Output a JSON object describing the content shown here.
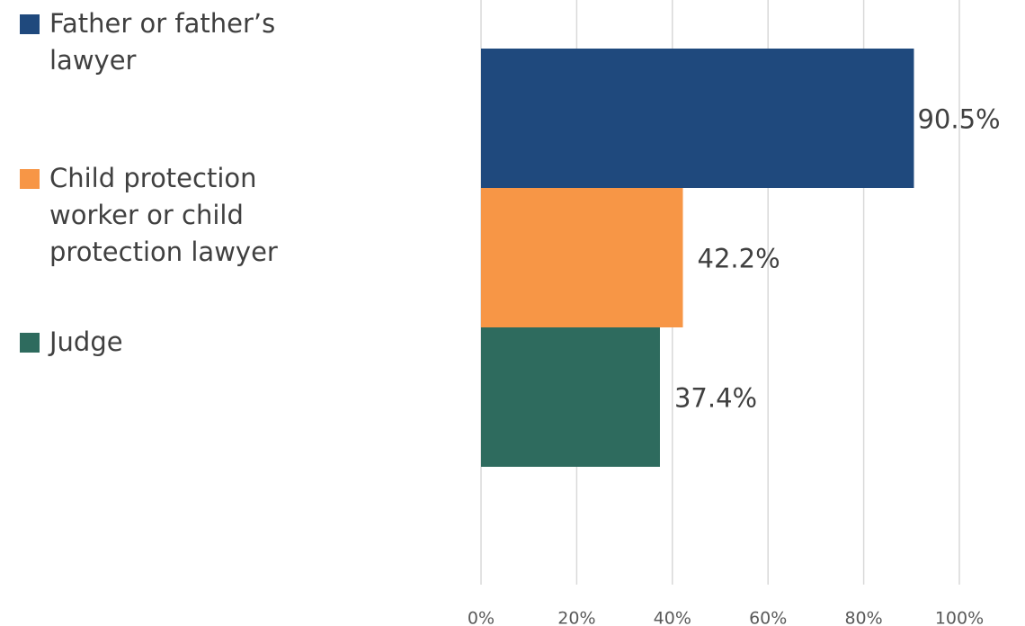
{
  "chart_data": {
    "type": "barh",
    "categories": [
      null
    ],
    "series": [
      {
        "name": "Father or father’s lawyer",
        "color": "#1f497d",
        "values": [
          90.5
        ],
        "value_labels": [
          "90.5%"
        ]
      },
      {
        "name": "Child protection worker or child protection lawyer",
        "color": "#f79646",
        "values": [
          42.2
        ],
        "value_labels": [
          "42.2%"
        ]
      },
      {
        "name": "Judge",
        "color": "#2e6b5e",
        "values": [
          37.4
        ],
        "value_labels": [
          "37.4%"
        ]
      }
    ],
    "xlim": [
      0,
      100
    ],
    "xticks": [
      {
        "value": 0,
        "label": "0%"
      },
      {
        "value": 20,
        "label": "20%"
      },
      {
        "value": 40,
        "label": "40%"
      },
      {
        "value": 60,
        "label": "60%"
      },
      {
        "value": 80,
        "label": "80%"
      },
      {
        "value": 100,
        "label": "100%"
      }
    ],
    "grid": true,
    "legend": "left"
  }
}
